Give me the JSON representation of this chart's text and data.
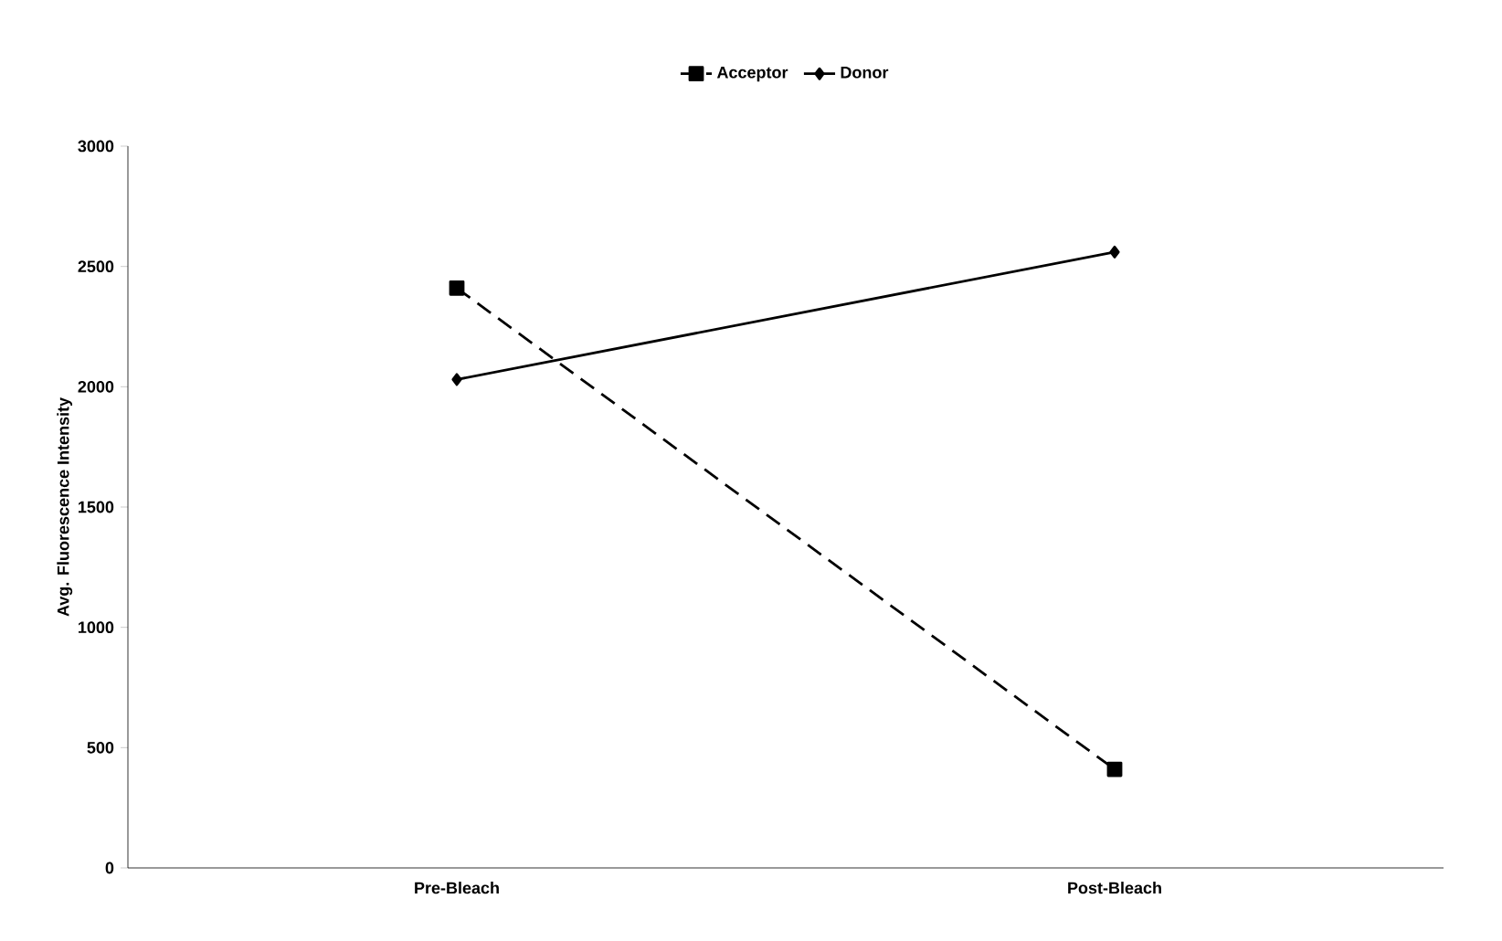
{
  "chart_data": {
    "type": "line",
    "ylabel": "Avg. Fluorescence Intensity",
    "categories": [
      "Pre-Bleach",
      "Post-Bleach"
    ],
    "series": [
      {
        "name": "Acceptor",
        "color": "#000000",
        "values": [
          2410,
          410
        ],
        "marker": "square",
        "line_style": "dashed"
      },
      {
        "name": "Donor",
        "color": "#000000",
        "values": [
          2030,
          2560
        ],
        "marker": "diamond",
        "line_style": "solid"
      }
    ],
    "ylim": [
      0,
      3000
    ],
    "yticks": [
      0,
      500,
      1000,
      1500,
      2000,
      2500,
      3000
    ],
    "legend": "top",
    "grid": false
  }
}
